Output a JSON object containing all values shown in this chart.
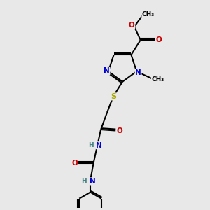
{
  "bg_color": "#e8e8e8",
  "bond_color": "#000000",
  "N_color": "#0000cc",
  "O_color": "#cc0000",
  "S_color": "#aaaa00",
  "H_color": "#408080",
  "figsize": [
    3.0,
    3.0
  ],
  "dpi": 100,
  "xlim": [
    0,
    10
  ],
  "ylim": [
    0,
    10
  ]
}
